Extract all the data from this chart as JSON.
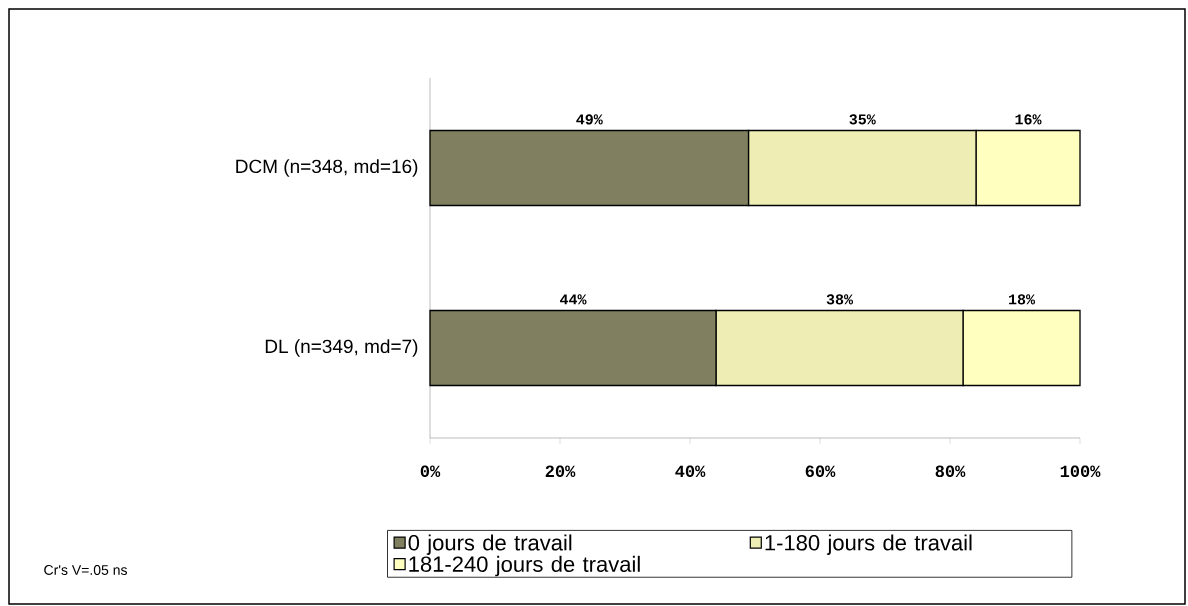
{
  "chart_data": {
    "type": "bar",
    "orientation": "horizontal",
    "stacked": true,
    "categories": [
      "DCM (n=348, md=16)",
      "DL (n=349, md=7)"
    ],
    "series": [
      {
        "name": "0 jours de travail",
        "color": "#808060",
        "values": [
          49,
          44
        ],
        "value_labels": [
          "49%",
          "44%"
        ]
      },
      {
        "name": "1-180 jours de travail",
        "color": "#eeeeb4",
        "values": [
          35,
          38
        ],
        "value_labels": [
          "35%",
          "38%"
        ]
      },
      {
        "name": "181-240 jours de travail",
        "color": "#ffffc0",
        "values": [
          16,
          18
        ],
        "value_labels": [
          "16%",
          "18%"
        ]
      }
    ],
    "xlim": [
      0,
      100
    ],
    "xticks": [
      {
        "value": 0,
        "label": "0%"
      },
      {
        "value": 20,
        "label": "20%"
      },
      {
        "value": 40,
        "label": "40%"
      },
      {
        "value": 60,
        "label": "60%"
      },
      {
        "value": 80,
        "label": "80%"
      },
      {
        "value": 100,
        "label": "100%"
      }
    ],
    "legend": "bottom",
    "annotations": [
      "Cr's V=.05 ns"
    ]
  }
}
